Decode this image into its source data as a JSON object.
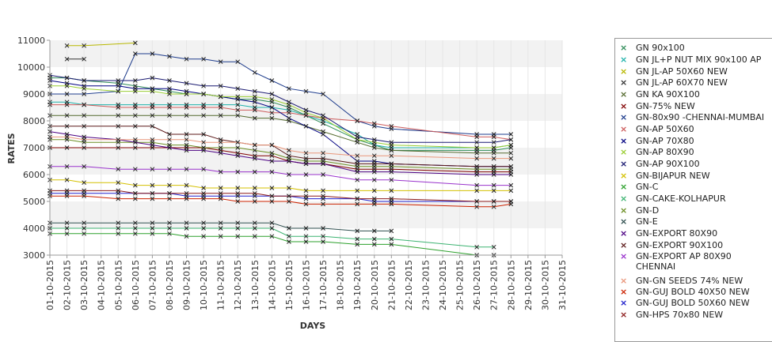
{
  "chart_data": {
    "type": "line",
    "xlabel": "DAYS",
    "ylabel": "RATES",
    "ylim": [
      3000,
      11000
    ],
    "yticks": [
      "3000",
      "4000",
      "5000",
      "6000",
      "7000",
      "8000",
      "9000",
      "10000",
      "11000"
    ],
    "categories": [
      "01-10-2015",
      "02-10-2015",
      "03-10-2015",
      "04-10-2015",
      "05-10-2015",
      "06-10-2015",
      "07-10-2015",
      "08-10-2015",
      "09-10-2015",
      "10-10-2015",
      "11-10-2015",
      "12-10-2015",
      "13-10-2015",
      "14-10-2015",
      "15-10-2015",
      "16-10-2015",
      "17-10-2015",
      "18-10-2015",
      "19-10-2015",
      "20-10-2015",
      "21-10-2015",
      "22-10-2015",
      "23-10-2015",
      "24-10-2015",
      "25-10-2015",
      "26-10-2015",
      "27-10-2015",
      "28-10-2015",
      "29-10-2015",
      "30-10-2015",
      "31-10-2015"
    ],
    "grid": true,
    "legend_position": "right",
    "series": [
      {
        "name": "GN 90x100",
        "color": "#2e8b57",
        "values": [
          9600,
          9600,
          9500,
          null,
          9400,
          9300,
          9200,
          9100,
          9000,
          9000,
          8900,
          8800,
          8800,
          8700,
          8500,
          8200,
          7900,
          null,
          7300,
          7100,
          6900,
          null,
          null,
          null,
          null,
          6900,
          6900,
          7000,
          null,
          null,
          null
        ]
      },
      {
        "name": "GN JL+P NUT MIX 90x100 AP",
        "color": "#20b2aa",
        "values": [
          8700,
          8700,
          8600,
          null,
          8600,
          8600,
          8600,
          8600,
          8600,
          8600,
          8600,
          8600,
          8500,
          8500,
          8400,
          8200,
          8000,
          null,
          7500,
          7100,
          7000,
          null,
          null,
          null,
          null,
          7000,
          7000,
          7100,
          null,
          null,
          null
        ]
      },
      {
        "name": "GN JL-AP 50X60 NEW",
        "color": "#b8b800",
        "values": [
          null,
          10800,
          10800,
          null,
          null,
          10900,
          null,
          null,
          null,
          null,
          null,
          null,
          null,
          null,
          null,
          null,
          null,
          null,
          null,
          null,
          null,
          null,
          null,
          null,
          null,
          null,
          null,
          null,
          null,
          null,
          null
        ]
      },
      {
        "name": "GN JL-AP 60X70 NEW",
        "color": "#333333",
        "values": [
          null,
          10300,
          10300,
          null,
          null,
          null,
          null,
          null,
          null,
          null,
          null,
          null,
          null,
          null,
          null,
          null,
          null,
          null,
          null,
          null,
          null,
          null,
          null,
          null,
          null,
          null,
          null,
          null,
          null,
          null,
          null
        ]
      },
      {
        "name": "GN KA 90X100",
        "color": "#556b2f",
        "values": [
          8200,
          8200,
          8200,
          null,
          8200,
          8200,
          8200,
          8200,
          8200,
          8200,
          8200,
          8200,
          8100,
          8100,
          8000,
          7800,
          7600,
          null,
          7200,
          7000,
          6900,
          null,
          null,
          null,
          null,
          6800,
          6800,
          6800,
          null,
          null,
          null
        ]
      },
      {
        "name": "GN-75% NEW",
        "color": "#800000",
        "values": [
          7000,
          7000,
          7000,
          null,
          7000,
          7000,
          7000,
          7000,
          7000,
          7000,
          6900,
          6800,
          6700,
          6700,
          6500,
          6400,
          6400,
          null,
          6200,
          6200,
          6200,
          null,
          null,
          null,
          null,
          6100,
          6100,
          6100,
          null,
          null,
          null
        ]
      },
      {
        "name": "GN-80x90 -CHENNAI-MUMBAI",
        "color": "#1e3c8c",
        "values": [
          9000,
          9000,
          9000,
          null,
          9100,
          10500,
          10500,
          10400,
          10300,
          10300,
          10200,
          10200,
          9800,
          9500,
          9200,
          9100,
          9000,
          null,
          8000,
          7800,
          7700,
          null,
          null,
          null,
          null,
          7500,
          7500,
          7500,
          null,
          null,
          null
        ]
      },
      {
        "name": "GN-AP 50X60",
        "color": "#cd5c5c",
        "values": [
          8600,
          8600,
          8600,
          null,
          8500,
          8500,
          8500,
          8500,
          8500,
          8500,
          8500,
          8400,
          8400,
          8300,
          8300,
          8200,
          8100,
          null,
          8000,
          7900,
          7800,
          null,
          null,
          null,
          null,
          7400,
          7400,
          7300,
          null,
          null,
          null
        ]
      },
      {
        "name": "GN-AP 70X80",
        "color": "#000080",
        "values": [
          9500,
          9400,
          9300,
          null,
          9300,
          9200,
          9200,
          9200,
          9100,
          9000,
          8900,
          8800,
          8700,
          8500,
          8100,
          7800,
          7500,
          null,
          6500,
          6500,
          6400,
          null,
          null,
          null,
          null,
          6300,
          6300,
          6300,
          null,
          null,
          null
        ]
      },
      {
        "name": "GN-AP 80X90",
        "color": "#9acd32",
        "values": [
          9300,
          9300,
          9200,
          null,
          9100,
          9100,
          9100,
          9000,
          9000,
          9000,
          8900,
          8900,
          8900,
          8800,
          8600,
          8300,
          8100,
          null,
          7300,
          7200,
          7100,
          null,
          null,
          null,
          null,
          7000,
          7000,
          7100,
          null,
          null,
          null
        ]
      },
      {
        "name": "GN-AP 90X100",
        "color": "#191970",
        "values": [
          9700,
          9600,
          9500,
          null,
          9500,
          9500,
          9600,
          9500,
          9400,
          9300,
          9300,
          9200,
          9100,
          9000,
          8700,
          8400,
          8200,
          null,
          7400,
          7300,
          7200,
          null,
          null,
          null,
          null,
          7200,
          7200,
          7300,
          null,
          null,
          null
        ]
      },
      {
        "name": "GN-BIJAPUR NEW",
        "color": "#d4c000",
        "values": [
          5800,
          5800,
          5700,
          null,
          5700,
          5600,
          5600,
          5600,
          5600,
          5500,
          5500,
          5500,
          5500,
          5500,
          5500,
          5400,
          5400,
          null,
          5400,
          5400,
          5400,
          null,
          null,
          null,
          null,
          5400,
          5400,
          5400,
          null,
          null,
          null
        ]
      },
      {
        "name": "GN-C",
        "color": "#2ca02c",
        "values": [
          3800,
          3800,
          3800,
          null,
          3800,
          3800,
          3800,
          3800,
          3700,
          3700,
          3700,
          3700,
          3700,
          3700,
          3500,
          3500,
          3500,
          null,
          3400,
          3400,
          3400,
          null,
          null,
          null,
          null,
          3000,
          3000,
          null,
          null,
          null,
          null
        ]
      },
      {
        "name": "GN-CAKE-KOLHAPUR",
        "color": "#3cb371",
        "values": [
          4000,
          4000,
          4000,
          null,
          4000,
          4000,
          4000,
          4000,
          4000,
          4000,
          4000,
          4000,
          4000,
          4000,
          3700,
          3700,
          3700,
          null,
          3600,
          3600,
          3600,
          null,
          null,
          null,
          null,
          3300,
          3300,
          null,
          null,
          null,
          null
        ]
      },
      {
        "name": "GN-D",
        "color": "#6b8e23",
        "values": [
          7300,
          7300,
          7200,
          null,
          7200,
          7200,
          7200,
          7100,
          7100,
          7000,
          7000,
          7000,
          6900,
          6800,
          6600,
          6500,
          6500,
          null,
          6300,
          6300,
          6300,
          null,
          null,
          null,
          null,
          6200,
          6200,
          6200,
          null,
          null,
          null
        ]
      },
      {
        "name": "GN-E",
        "color": "#2f4f4f",
        "values": [
          4200,
          4200,
          4200,
          null,
          4200,
          4200,
          4200,
          4200,
          4200,
          4200,
          4200,
          4200,
          4200,
          4200,
          4000,
          4000,
          4000,
          null,
          3900,
          3900,
          3900,
          null,
          null,
          null,
          null,
          null,
          null,
          null,
          null,
          null,
          null
        ]
      },
      {
        "name": "GN-EXPORT 80X90",
        "color": "#4b0082",
        "values": [
          7600,
          7500,
          7400,
          null,
          7300,
          7200,
          7100,
          7000,
          6900,
          6900,
          6800,
          6700,
          6600,
          6500,
          6500,
          6400,
          6400,
          null,
          6100,
          6100,
          6100,
          null,
          null,
          null,
          null,
          6000,
          6000,
          6000,
          null,
          null,
          null
        ]
      },
      {
        "name": "GN-EXPORT 90X100",
        "color": "#5c1a1a",
        "values": [
          7800,
          7800,
          7800,
          null,
          7800,
          7800,
          7800,
          7500,
          7500,
          7500,
          7300,
          7200,
          7100,
          7100,
          6700,
          6600,
          6600,
          null,
          6400,
          6400,
          6400,
          null,
          null,
          null,
          null,
          6300,
          6300,
          6300,
          null,
          null,
          null
        ]
      },
      {
        "name": "GN-EXPORT AP 80X90 CHENNAI",
        "color": "#9932cc",
        "values": [
          6300,
          6300,
          6300,
          null,
          6200,
          6200,
          6200,
          6200,
          6200,
          6200,
          6100,
          6100,
          6100,
          6100,
          6000,
          6000,
          6000,
          null,
          5800,
          5800,
          5800,
          null,
          null,
          null,
          null,
          5600,
          5600,
          5600,
          null,
          null,
          null
        ]
      },
      {
        "name": "GN-GN SEEDS 74% NEW",
        "color": "#e9967a",
        "values": [
          7400,
          7400,
          7300,
          null,
          7300,
          7300,
          7300,
          7300,
          7300,
          7200,
          7200,
          7200,
          7100,
          7100,
          6900,
          6800,
          6800,
          null,
          6700,
          6700,
          6700,
          null,
          null,
          null,
          null,
          6600,
          6600,
          6600,
          null,
          null,
          null
        ]
      },
      {
        "name": "GN-GUJ BOLD 40X50 NEW",
        "color": "#cc2200",
        "values": [
          5200,
          5200,
          5200,
          null,
          5100,
          5100,
          5100,
          5100,
          5100,
          5100,
          5100,
          5000,
          5000,
          5000,
          5000,
          4900,
          4900,
          null,
          4900,
          4900,
          4900,
          null,
          null,
          null,
          null,
          4800,
          4800,
          4900,
          null,
          null,
          null
        ]
      },
      {
        "name": "GN-GUJ BOLD 50X60 NEW",
        "color": "#2020cc",
        "values": [
          5300,
          5300,
          5300,
          null,
          5300,
          5300,
          5300,
          5300,
          5200,
          5200,
          5200,
          5200,
          5200,
          5200,
          5200,
          5100,
          5100,
          null,
          5100,
          5000,
          5000,
          null,
          null,
          null,
          null,
          5000,
          5000,
          5000,
          null,
          null,
          null
        ]
      },
      {
        "name": "GN-HPS  70x80 NEW",
        "color": "#8b1a1a",
        "values": [
          5400,
          5400,
          5400,
          null,
          5400,
          5300,
          5300,
          5300,
          5300,
          5300,
          5300,
          5300,
          5300,
          5200,
          5200,
          5200,
          5200,
          null,
          5100,
          5100,
          5100,
          null,
          null,
          null,
          null,
          5000,
          5000,
          5000,
          null,
          null,
          null
        ]
      }
    ]
  }
}
